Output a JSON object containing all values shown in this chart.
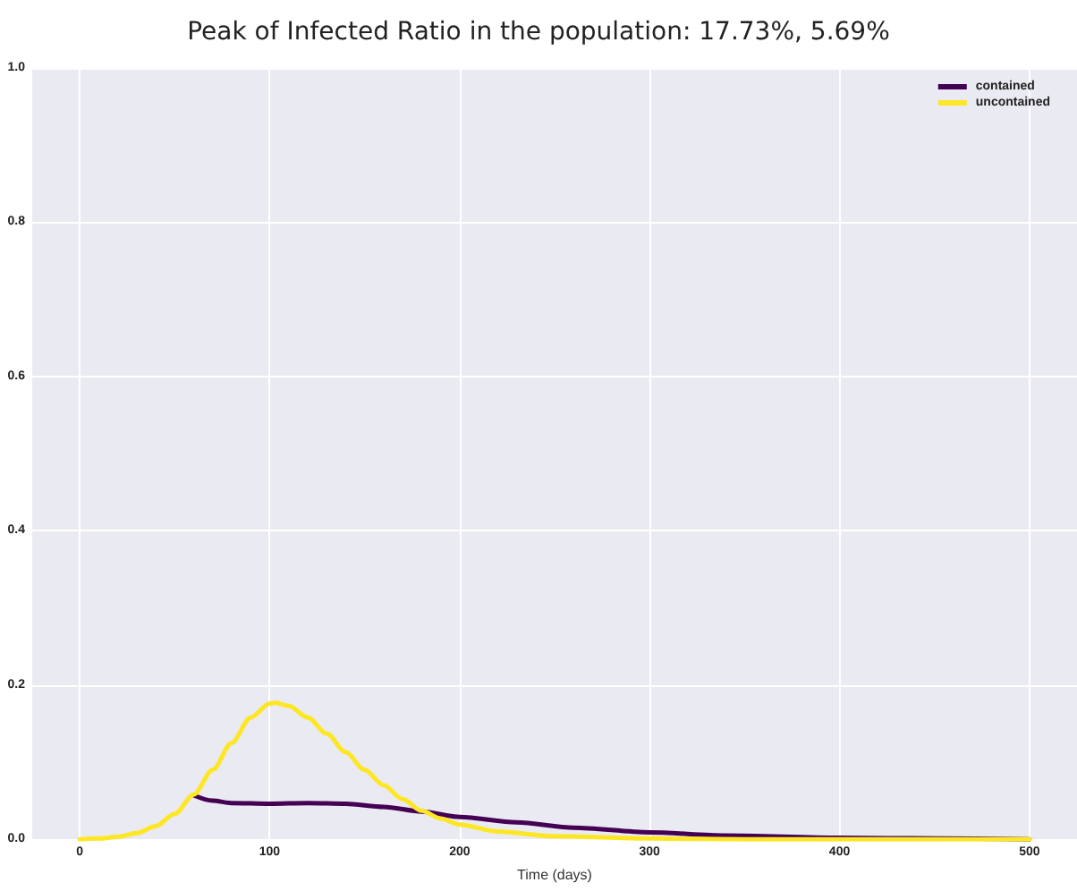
{
  "chart_data": {
    "type": "line",
    "title": "Peak of Infected Ratio in the population: 17.73%, 5.69%",
    "xlabel": "Time (days)",
    "xlim": [
      -25,
      525
    ],
    "xticks": [
      0,
      100,
      200,
      300,
      400,
      500
    ],
    "ylim": [
      0,
      1
    ],
    "yticks": [
      {
        "value": 0,
        "label": "0.0"
      },
      0.2,
      0.4,
      0.6,
      0.8,
      {
        "value": 1,
        "label": "1.0"
      }
    ],
    "grid": true,
    "legend": "top right",
    "line_style": "solid",
    "marker": "none",
    "series": [
      {
        "name": "contained",
        "color": "#440154",
        "x": [
          60,
          70,
          80,
          100,
          120,
          140,
          160,
          180,
          200,
          230,
          260,
          300,
          340,
          400,
          450,
          500
        ],
        "values": [
          0.057,
          0.05,
          0.047,
          0.046,
          0.047,
          0.046,
          0.042,
          0.036,
          0.029,
          0.022,
          0.015,
          0.009,
          0.005,
          0.002,
          0.001,
          0
        ]
      },
      {
        "name": "uncontained",
        "color": "#fde725",
        "x": [
          0,
          10,
          20,
          30,
          40,
          50,
          60,
          70,
          80,
          90,
          100,
          103,
          110,
          120,
          130,
          140,
          150,
          160,
          170,
          180,
          190,
          200,
          220,
          250,
          300,
          350,
          400,
          500
        ],
        "values": [
          0,
          0.001,
          0.003,
          0.008,
          0.017,
          0.033,
          0.058,
          0.09,
          0.125,
          0.158,
          0.176,
          0.177,
          0.173,
          0.158,
          0.137,
          0.113,
          0.09,
          0.07,
          0.052,
          0.037,
          0.027,
          0.019,
          0.01,
          0.004,
          0.001,
          0,
          0,
          0
        ]
      }
    ]
  }
}
